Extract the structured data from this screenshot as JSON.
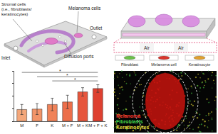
{
  "device": {
    "stromal_label": [
      "Stromal cells",
      "(i.e., fibroblasts/",
      "keratinocytes)"
    ],
    "melanoma_label": "Melanoma cells",
    "outlet_label": "Outlet",
    "inlet_label": "Inlet",
    "ports_label": "Diffusion ports"
  },
  "cross_section": {
    "air_labels": [
      "Air",
      "Air"
    ],
    "cells": [
      {
        "label": "Fibroblast",
        "color": "#6cc04a"
      },
      {
        "label": "Melanoma cell",
        "color": "#d9342b"
      },
      {
        "label": "Keratinocyte",
        "color": "#e0a030"
      }
    ]
  },
  "image": {
    "labels": [
      {
        "text": "Melanoma",
        "color": "#ff3b30"
      },
      {
        "text": "Fibroblasts",
        "color": "#3fd24a"
      },
      {
        "text": "Keratinocytes",
        "color": "#e8e040"
      }
    ]
  },
  "chart_data": {
    "type": "bar",
    "categories": [
      "M",
      "F",
      "K",
      "M + F",
      "M + K",
      "M + F + K"
    ],
    "values": [
      2.8,
      2.9,
      4.0,
      4.6,
      7.0,
      7.8
    ],
    "errors": [
      1.2,
      1.3,
      1.5,
      1.6,
      1.0,
      0.9
    ],
    "colors": [
      "#f4a77a",
      "#f29468",
      "#f08258",
      "#ec6e4a",
      "#e6553c",
      "#de4030"
    ],
    "ylim": [
      0,
      12
    ],
    "yticks": [
      0,
      3,
      6,
      9,
      12
    ],
    "tick_labels": "x",
    "significance": [
      {
        "from": 0,
        "to": 5,
        "label": "*"
      },
      {
        "from": 1,
        "to": 5,
        "label": "*"
      },
      {
        "from": 2,
        "to": 5,
        "label": "*"
      }
    ]
  }
}
